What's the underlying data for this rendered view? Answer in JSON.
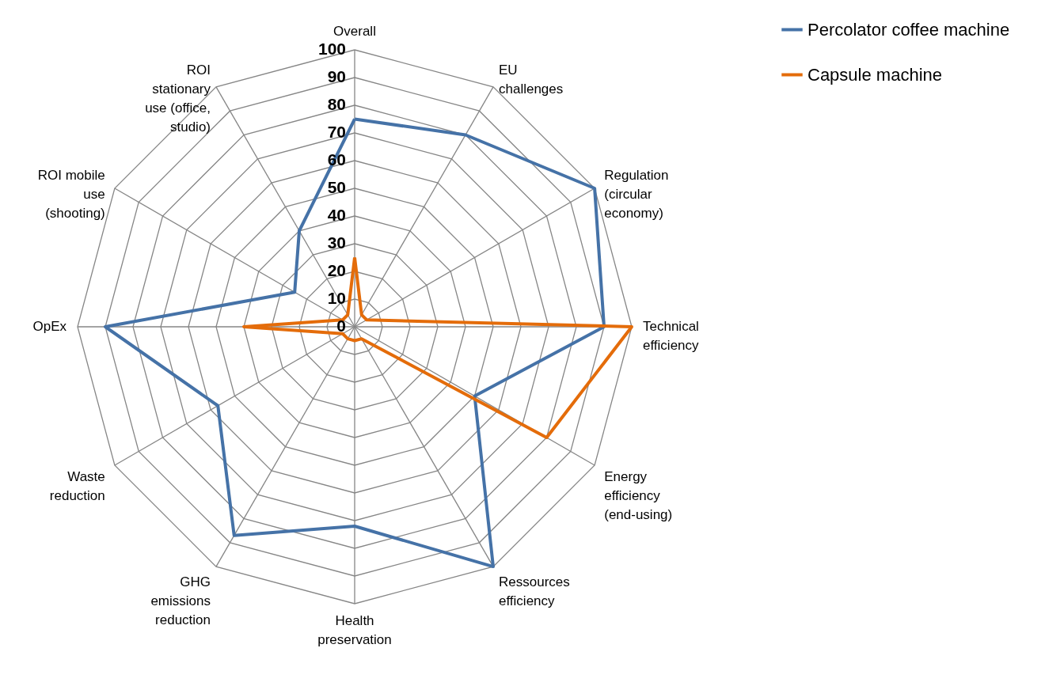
{
  "chart_data": {
    "type": "radar",
    "categories": [
      "Overall",
      "EU challenges",
      "Regulation (circular economy)",
      "Technical efficiency",
      "Energy efficiency (end-using)",
      "Ressources efficiency",
      "Health preservation",
      "GHG emissions reduction",
      "Waste reduction",
      "OpEx",
      "ROI mobile use (shooting)",
      "ROI stationary use (office, studio)"
    ],
    "series": [
      {
        "name": "Percolator coffee machine",
        "color": "#4572a7",
        "values": [
          75,
          80,
          100,
          90,
          50,
          100,
          72,
          87,
          57,
          90,
          25,
          40
        ]
      },
      {
        "name": "Capsule machine",
        "color": "#e46c0a",
        "values": [
          25,
          5,
          5,
          100,
          80,
          5,
          5,
          5,
          5,
          40,
          5,
          5
        ]
      }
    ],
    "ylim": [
      0,
      100
    ],
    "yticks": [
      0,
      10,
      20,
      30,
      40,
      50,
      60,
      70,
      80,
      90,
      100
    ],
    "grid": true,
    "legend": "top right",
    "marker": "none",
    "line_style": "solid"
  }
}
